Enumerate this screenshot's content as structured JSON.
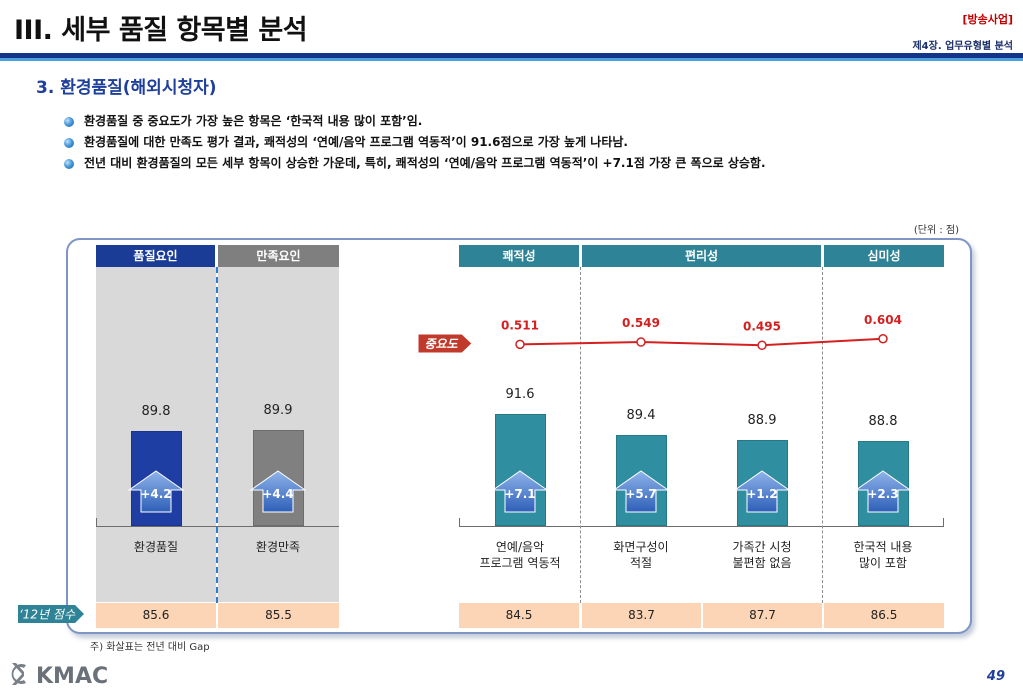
{
  "header": {
    "title": "III. 세부 품질 항목별 분석",
    "category": "[방송사업]",
    "chapter": "제4장. 업무유형별 분석"
  },
  "section_title": "3. 환경품질(해외시청자)",
  "bullets": [
    "환경품질 중 중요도가 가장 높은 항목은 ‘한국적 내용 많이 포함’임.",
    "환경품질에 대한 만족도 평가 결과, 쾌적성의 ‘연예/음악 프로그램 역동적’이 91.6점으로 가장 높게 나타남.",
    "전년 대비 환경품질의 모든 세부 항목이 상승한 가운데, 특히, 쾌적성의 ‘연예/음악 프로그램 역동적’이 +7.1점 가장 큰 폭으로 상승함."
  ],
  "unit": "(단위 : 점)",
  "headers": {
    "quality": "품질요인",
    "satisfaction": "만족요인",
    "comfort": "쾌적성",
    "convenience": "편리성",
    "aesthetics": "심미성"
  },
  "importance_label": "중요도",
  "prev_label": "‘12년 점수",
  "footnote": "주) 화살표는 전년 대비 Gap",
  "logo_text": "KMAC",
  "page_number": "49",
  "colors": {
    "quality_bar": "#1f3ea3",
    "satisfaction_bar": "#808080",
    "env_bar": "#2f8fa0",
    "importance_line": "#d42020",
    "header_quality": "#1a3c96",
    "header_satisfaction": "#7f7f7f",
    "header_teal": "#2e8496",
    "prev_fill": "#fbd5b5"
  },
  "chart_data": {
    "type": "bar",
    "categories": [
      "환경품질",
      "환경만족",
      "연예/음악\n프로그램 역동적",
      "화면구성이\n적절",
      "가족간 시청\n불편함 없음",
      "한국적 내용\n많이 포함"
    ],
    "category_lines": [
      [
        "환경품질"
      ],
      [
        "환경만족"
      ],
      [
        "연예/음악",
        "프로그램 역동적"
      ],
      [
        "화면구성이",
        "적절"
      ],
      [
        "가족간 시청",
        "불편함 없음"
      ],
      [
        "한국적 내용",
        "많이 포함"
      ]
    ],
    "groups": [
      "품질요인",
      "만족요인",
      "쾌적성",
      "편리성",
      "편리성",
      "심미성"
    ],
    "values": [
      89.8,
      89.9,
      91.6,
      89.4,
      88.9,
      88.8
    ],
    "gap": [
      "+4.2",
      "+4.4",
      "+7.1",
      "+5.7",
      "+1.2",
      "+2.3"
    ],
    "prev_scores": [
      85.6,
      85.5,
      84.5,
      83.7,
      87.7,
      86.5
    ],
    "importance": {
      "values": [
        null,
        null,
        0.511,
        0.549,
        0.495,
        0.604
      ],
      "labels": [
        "",
        "",
        "0.511",
        "0.549",
        "0.495",
        "0.604"
      ]
    },
    "value_labels": [
      "89.8",
      "89.9",
      "91.6",
      "89.4",
      "88.9",
      "88.8"
    ],
    "prev_labels": [
      "85.6",
      "85.5",
      "84.5",
      "83.7",
      "87.7",
      "86.5"
    ]
  }
}
